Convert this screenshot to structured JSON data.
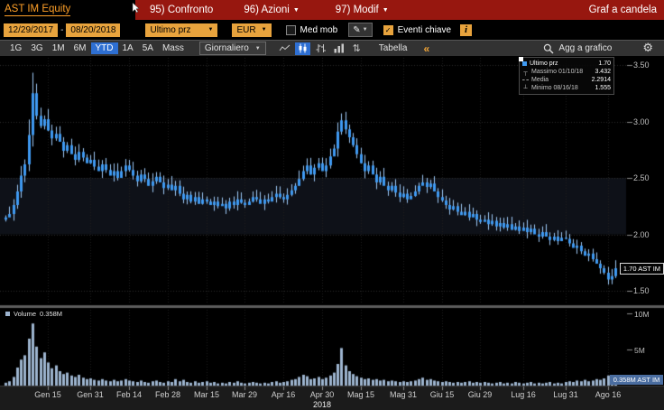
{
  "titlebar": {
    "security": "AST IM Equity",
    "menu_items": [
      {
        "label": "95) Confronto"
      },
      {
        "label": "96) Azioni"
      },
      {
        "label": "97) Modif"
      }
    ],
    "view_title": "Graf a candela"
  },
  "toolbar_fields": {
    "date_from": "12/29/2017",
    "date_to": "08/20/2018",
    "field_dropdown": "Ultimo prz",
    "currency_dropdown": "EUR",
    "med_mob_label": "Med mob",
    "pencil_icon": "✎",
    "eventi_label": "Eventi chiave",
    "info_icon": "i"
  },
  "toolbar_chart": {
    "periods": [
      "1G",
      "3G",
      "1M",
      "6M",
      "YTD",
      "1A",
      "5A",
      "Mass"
    ],
    "selected_period": "YTD",
    "frequency_dropdown": "Giornaliero",
    "table_button": "Tabella",
    "collapse_button": "«",
    "add_to_chart": "Agg a grafico",
    "compare_icon": "⇅",
    "gear_icon": "⚙"
  },
  "legend": {
    "rows": [
      {
        "label": "Ultimo prz",
        "value": "1.70"
      },
      {
        "label": "Massimo 01/10/18",
        "value": "3.432"
      },
      {
        "label": "Media",
        "value": "2.2914"
      },
      {
        "label": "Minimo 08/16/18",
        "value": "1.555"
      }
    ]
  },
  "volume_legend": {
    "label": "Volume",
    "value": "0.358M"
  },
  "badges": {
    "last_price": "1.70 AST IM",
    "last_volume": "0.358M AST IM"
  },
  "chart_data": {
    "type": "candlestick",
    "symbol": "AST IM Equity",
    "currency": "EUR",
    "frequency": "Giornaliero",
    "ylim": [
      1.45,
      3.58
    ],
    "y_ticks": [
      "3.50",
      "3.00",
      "2.50",
      "2.00",
      "1.50"
    ],
    "y_tick_values": [
      3.5,
      3.0,
      2.5,
      2.0,
      1.5
    ],
    "volume_ticks": [
      {
        "label": "10M",
        "value": 10
      },
      {
        "label": "5M",
        "value": 5
      }
    ],
    "x_ticks": [
      {
        "index": 11,
        "label": "Gen 15"
      },
      {
        "index": 22,
        "label": "Gen 31"
      },
      {
        "index": 32,
        "label": "Feb 14"
      },
      {
        "index": 42,
        "label": "Feb 28"
      },
      {
        "index": 52,
        "label": "Mar 15"
      },
      {
        "index": 62,
        "label": "Mar 29"
      },
      {
        "index": 72,
        "label": "Apr 16"
      },
      {
        "index": 82,
        "label": "Apr 30"
      },
      {
        "index": 92,
        "label": "Mag 15"
      },
      {
        "index": 103,
        "label": "Mag 31"
      },
      {
        "index": 113,
        "label": "Giu 15"
      },
      {
        "index": 123,
        "label": "Giu 29"
      },
      {
        "index": 134,
        "label": "Lug 16"
      },
      {
        "index": 145,
        "label": "Lug 31"
      },
      {
        "index": 156,
        "label": "Ago 16"
      }
    ],
    "year_label": {
      "index": 82,
      "label": "2018"
    },
    "stats": {
      "last": 1.7,
      "max": 3.432,
      "max_date": "01/10/18",
      "mean": 2.2914,
      "min": 1.555,
      "min_date": "08/16/18",
      "last_volume_m": 0.358
    },
    "max_point": {
      "index": 7,
      "high": 3.432
    },
    "min_point": {
      "index": 156,
      "low": 1.555
    },
    "closes": [
      2.15,
      2.18,
      2.26,
      2.38,
      2.52,
      2.62,
      2.88,
      3.25,
      3.05,
      2.96,
      3.02,
      2.92,
      2.85,
      2.89,
      2.82,
      2.74,
      2.79,
      2.71,
      2.66,
      2.73,
      2.68,
      2.63,
      2.66,
      2.6,
      2.56,
      2.62,
      2.57,
      2.52,
      2.56,
      2.5,
      2.56,
      2.61,
      2.57,
      2.52,
      2.47,
      2.53,
      2.49,
      2.43,
      2.47,
      2.51,
      2.46,
      2.41,
      2.44,
      2.39,
      2.43,
      2.36,
      2.31,
      2.35,
      2.29,
      2.33,
      2.27,
      2.31,
      2.29,
      2.26,
      2.29,
      2.25,
      2.27,
      2.23,
      2.29,
      2.26,
      2.31,
      2.28,
      2.26,
      2.29,
      2.33,
      2.31,
      2.27,
      2.31,
      2.29,
      2.33,
      2.36,
      2.33,
      2.31,
      2.35,
      2.39,
      2.43,
      2.49,
      2.56,
      2.61,
      2.53,
      2.59,
      2.63,
      2.56,
      2.61,
      2.69,
      2.76,
      2.91,
      3.01,
      2.93,
      2.86,
      2.79,
      2.71,
      2.63,
      2.56,
      2.61,
      2.53,
      2.46,
      2.51,
      2.43,
      2.39,
      2.43,
      2.37,
      2.33,
      2.36,
      2.31,
      2.34,
      2.38,
      2.43,
      2.46,
      2.42,
      2.45,
      2.38,
      2.33,
      2.3,
      2.26,
      2.22,
      2.25,
      2.2,
      2.17,
      2.2,
      2.15,
      2.18,
      2.13,
      2.11,
      2.13,
      2.09,
      2.12,
      2.07,
      2.1,
      2.06,
      2.09,
      2.04,
      2.07,
      2.03,
      2.06,
      2.02,
      2.05,
      2.0,
      1.98,
      2.02,
      1.98,
      1.95,
      1.98,
      1.94,
      1.97,
      1.96,
      1.92,
      1.88,
      1.9,
      1.85,
      1.81,
      1.83,
      1.78,
      1.74,
      1.7,
      1.66,
      1.6,
      1.63,
      1.7
    ],
    "volumes_m": [
      0.4,
      0.6,
      1.2,
      2.5,
      3.6,
      4.2,
      6.5,
      8.6,
      5.4,
      3.8,
      4.6,
      3.2,
      2.4,
      2.8,
      2.0,
      1.6,
      1.8,
      1.4,
      1.2,
      1.5,
      1.1,
      0.9,
      1.0,
      0.8,
      0.7,
      0.9,
      0.7,
      0.6,
      0.8,
      0.6,
      0.7,
      0.9,
      0.7,
      0.6,
      0.5,
      0.7,
      0.5,
      0.4,
      0.6,
      0.7,
      0.5,
      0.4,
      0.6,
      0.5,
      0.9,
      0.6,
      0.8,
      0.5,
      0.4,
      0.6,
      0.4,
      0.5,
      0.6,
      0.4,
      0.5,
      0.3,
      0.4,
      0.3,
      0.5,
      0.4,
      0.6,
      0.4,
      0.3,
      0.4,
      0.5,
      0.4,
      0.3,
      0.4,
      0.3,
      0.5,
      0.6,
      0.4,
      0.5,
      0.6,
      0.8,
      0.9,
      1.2,
      1.5,
      1.3,
      0.9,
      1.0,
      1.2,
      0.9,
      1.1,
      1.4,
      1.8,
      3.0,
      5.2,
      2.8,
      2.0,
      1.6,
      1.3,
      1.1,
      0.9,
      1.0,
      0.8,
      0.9,
      0.7,
      0.8,
      0.6,
      0.7,
      0.6,
      0.5,
      0.6,
      0.5,
      0.6,
      0.7,
      0.9,
      1.1,
      0.8,
      0.9,
      0.7,
      0.6,
      0.5,
      0.6,
      0.5,
      0.4,
      0.5,
      0.4,
      0.5,
      0.6,
      0.4,
      0.5,
      0.4,
      0.5,
      0.4,
      0.3,
      0.4,
      0.5,
      0.3,
      0.4,
      0.3,
      0.5,
      0.4,
      0.3,
      0.4,
      0.5,
      0.3,
      0.4,
      0.3,
      0.4,
      0.5,
      0.3,
      0.4,
      0.3,
      0.5,
      0.6,
      0.5,
      0.7,
      0.6,
      0.8,
      0.6,
      0.7,
      0.9,
      0.8,
      1.0,
      1.4,
      0.8,
      0.358
    ],
    "colors": {
      "candle": "#3f9af2",
      "wick": "#9dc9f7",
      "volume_bar": "#9db4cf",
      "grid": "#2c2c2c",
      "band": "rgba(34,40,58,0.42)"
    }
  }
}
